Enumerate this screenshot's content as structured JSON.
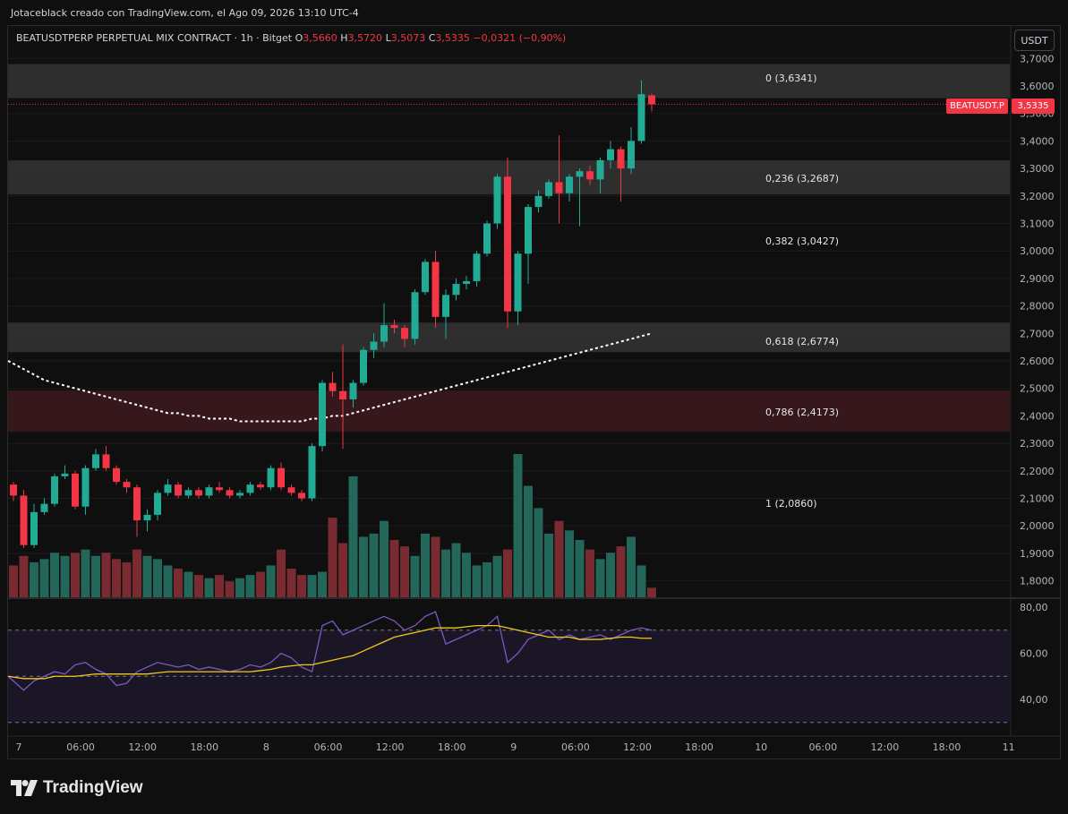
{
  "header": {
    "watermark": "Jotaceblack creado con TradingView.com, el Ago 09, 2026 13:10 UTC-4"
  },
  "legend": {
    "symbol": "BEATUSDTPERP PERPETUAL MIX CONTRACT · 1h · Bitget",
    "o_label": "O",
    "o": "3,5660",
    "h_label": "H",
    "h": "3,5720",
    "l_label": "L",
    "l": "3,5073",
    "c_label": "C",
    "c": "3,5335",
    "change": "−0,0321 (−0,90%)"
  },
  "price_scale": {
    "unit": "USDT",
    "ticks": [
      "3,7000",
      "3,6000",
      "3,5000",
      "3,4000",
      "3,3000",
      "3,2000",
      "3,1000",
      "3,0000",
      "2,9000",
      "2,8000",
      "2,7000",
      "2,6000",
      "2,5000",
      "2,4000",
      "2,3000",
      "2,2000",
      "2,1000",
      "2,0000",
      "1,9000",
      "1,8000"
    ],
    "last_tag": "BEATUSDT.P",
    "last_price": "3,5335"
  },
  "rsi_scale": {
    "ticks": [
      "80,00",
      "60,00",
      "40,00"
    ]
  },
  "time_axis": [
    "7",
    "06:00",
    "12:00",
    "18:00",
    "8",
    "06:00",
    "12:00",
    "18:00",
    "9",
    "06:00",
    "12:00",
    "18:00",
    "10",
    "06:00",
    "12:00",
    "18:00",
    "11"
  ],
  "footer": {
    "brand": "TradingView"
  },
  "colors": {
    "up": "#22ab94",
    "down": "#f23645",
    "rsi_line": "#7e57c2",
    "rsi_ma": "#f0c81e",
    "fib_band": "#3a3a3a",
    "fib_786_band": "#3b1a1e"
  },
  "chart_data": {
    "type": "candlestick",
    "price_range": [
      1.76,
      3.72
    ],
    "fib_levels": [
      {
        "ratio": "0",
        "value": 3.6341,
        "label": "0 (3,6341)"
      },
      {
        "ratio": "0.236",
        "value": 3.2687,
        "label": "0,236 (3,2687)"
      },
      {
        "ratio": "0.382",
        "value": 3.0427,
        "label": "0,382 (3,0427)"
      },
      {
        "ratio": "0.618",
        "value": 2.6774,
        "label": "0,618 (2,6774)"
      },
      {
        "ratio": "0.786",
        "value": 2.4173,
        "label": "0,786 (2,4173)"
      },
      {
        "ratio": "1",
        "value": 2.086,
        "label": "1 (2,0860)"
      }
    ],
    "candles": [
      {
        "o": 2.15,
        "h": 2.16,
        "l": 2.09,
        "c": 2.11
      },
      {
        "o": 2.11,
        "h": 2.13,
        "l": 1.92,
        "c": 1.93
      },
      {
        "o": 1.93,
        "h": 2.08,
        "l": 1.92,
        "c": 2.05
      },
      {
        "o": 2.05,
        "h": 2.1,
        "l": 2.04,
        "c": 2.08
      },
      {
        "o": 2.08,
        "h": 2.19,
        "l": 2.07,
        "c": 2.18
      },
      {
        "o": 2.18,
        "h": 2.22,
        "l": 2.17,
        "c": 2.19
      },
      {
        "o": 2.19,
        "h": 2.2,
        "l": 2.06,
        "c": 2.07
      },
      {
        "o": 2.07,
        "h": 2.22,
        "l": 2.04,
        "c": 2.21
      },
      {
        "o": 2.21,
        "h": 2.28,
        "l": 2.2,
        "c": 2.26
      },
      {
        "o": 2.26,
        "h": 2.29,
        "l": 2.2,
        "c": 2.21
      },
      {
        "o": 2.21,
        "h": 2.22,
        "l": 2.15,
        "c": 2.16
      },
      {
        "o": 2.16,
        "h": 2.17,
        "l": 2.12,
        "c": 2.14
      },
      {
        "o": 2.14,
        "h": 2.15,
        "l": 1.96,
        "c": 2.02
      },
      {
        "o": 2.02,
        "h": 2.06,
        "l": 1.98,
        "c": 2.04
      },
      {
        "o": 2.04,
        "h": 2.13,
        "l": 2.02,
        "c": 2.12
      },
      {
        "o": 2.12,
        "h": 2.17,
        "l": 2.11,
        "c": 2.15
      },
      {
        "o": 2.15,
        "h": 2.16,
        "l": 2.1,
        "c": 2.11
      },
      {
        "o": 2.11,
        "h": 2.14,
        "l": 2.1,
        "c": 2.13
      },
      {
        "o": 2.13,
        "h": 2.14,
        "l": 2.1,
        "c": 2.11
      },
      {
        "o": 2.11,
        "h": 2.15,
        "l": 2.1,
        "c": 2.14
      },
      {
        "o": 2.14,
        "h": 2.16,
        "l": 2.12,
        "c": 2.13
      },
      {
        "o": 2.13,
        "h": 2.14,
        "l": 2.1,
        "c": 2.11
      },
      {
        "o": 2.11,
        "h": 2.13,
        "l": 2.1,
        "c": 2.12
      },
      {
        "o": 2.12,
        "h": 2.16,
        "l": 2.11,
        "c": 2.15
      },
      {
        "o": 2.15,
        "h": 2.16,
        "l": 2.13,
        "c": 2.14
      },
      {
        "o": 2.14,
        "h": 2.22,
        "l": 2.13,
        "c": 2.21
      },
      {
        "o": 2.21,
        "h": 2.23,
        "l": 2.13,
        "c": 2.14
      },
      {
        "o": 2.14,
        "h": 2.15,
        "l": 2.11,
        "c": 2.12
      },
      {
        "o": 2.12,
        "h": 2.13,
        "l": 2.09,
        "c": 2.1
      },
      {
        "o": 2.1,
        "h": 2.3,
        "l": 2.09,
        "c": 2.29
      },
      {
        "o": 2.29,
        "h": 2.53,
        "l": 2.27,
        "c": 2.52
      },
      {
        "o": 2.52,
        "h": 2.56,
        "l": 2.47,
        "c": 2.49
      },
      {
        "o": 2.49,
        "h": 2.66,
        "l": 2.28,
        "c": 2.46
      },
      {
        "o": 2.46,
        "h": 2.53,
        "l": 2.43,
        "c": 2.52
      },
      {
        "o": 2.52,
        "h": 2.65,
        "l": 2.51,
        "c": 2.64
      },
      {
        "o": 2.64,
        "h": 2.7,
        "l": 2.61,
        "c": 2.67
      },
      {
        "o": 2.67,
        "h": 2.81,
        "l": 2.65,
        "c": 2.73
      },
      {
        "o": 2.73,
        "h": 2.75,
        "l": 2.7,
        "c": 2.72
      },
      {
        "o": 2.72,
        "h": 2.73,
        "l": 2.65,
        "c": 2.68
      },
      {
        "o": 2.68,
        "h": 2.86,
        "l": 2.66,
        "c": 2.85
      },
      {
        "o": 2.85,
        "h": 2.97,
        "l": 2.84,
        "c": 2.96
      },
      {
        "o": 2.96,
        "h": 3.0,
        "l": 2.72,
        "c": 2.76
      },
      {
        "o": 2.76,
        "h": 2.86,
        "l": 2.68,
        "c": 2.84
      },
      {
        "o": 2.84,
        "h": 2.9,
        "l": 2.82,
        "c": 2.88
      },
      {
        "o": 2.88,
        "h": 2.91,
        "l": 2.86,
        "c": 2.89
      },
      {
        "o": 2.89,
        "h": 3.0,
        "l": 2.87,
        "c": 2.99
      },
      {
        "o": 2.99,
        "h": 3.11,
        "l": 2.98,
        "c": 3.1
      },
      {
        "o": 3.1,
        "h": 3.28,
        "l": 3.08,
        "c": 3.27
      },
      {
        "o": 3.27,
        "h": 3.34,
        "l": 2.72,
        "c": 2.78
      },
      {
        "o": 2.78,
        "h": 3.0,
        "l": 2.73,
        "c": 2.99
      },
      {
        "o": 2.99,
        "h": 3.17,
        "l": 2.88,
        "c": 3.16
      },
      {
        "o": 3.16,
        "h": 3.22,
        "l": 3.14,
        "c": 3.2
      },
      {
        "o": 3.2,
        "h": 3.26,
        "l": 3.19,
        "c": 3.25
      },
      {
        "o": 3.25,
        "h": 3.42,
        "l": 3.1,
        "c": 3.21
      },
      {
        "o": 3.21,
        "h": 3.28,
        "l": 3.18,
        "c": 3.27
      },
      {
        "o": 3.27,
        "h": 3.3,
        "l": 3.09,
        "c": 3.29
      },
      {
        "o": 3.29,
        "h": 3.31,
        "l": 3.24,
        "c": 3.26
      },
      {
        "o": 3.26,
        "h": 3.34,
        "l": 3.21,
        "c": 3.33
      },
      {
        "o": 3.33,
        "h": 3.4,
        "l": 3.3,
        "c": 3.37
      },
      {
        "o": 3.37,
        "h": 3.38,
        "l": 3.18,
        "c": 3.3
      },
      {
        "o": 3.3,
        "h": 3.45,
        "l": 3.28,
        "c": 3.4
      },
      {
        "o": 3.4,
        "h": 3.62,
        "l": 3.39,
        "c": 3.57
      },
      {
        "o": 3.566,
        "h": 3.572,
        "l": 3.5073,
        "c": 3.5335
      }
    ],
    "volumes": [
      20,
      26,
      22,
      24,
      28,
      26,
      28,
      30,
      26,
      28,
      24,
      22,
      30,
      26,
      24,
      20,
      18,
      16,
      14,
      12,
      14,
      10,
      12,
      14,
      16,
      20,
      30,
      18,
      14,
      14,
      16,
      50,
      34,
      76,
      38,
      40,
      48,
      36,
      32,
      26,
      40,
      38,
      30,
      34,
      28,
      20,
      22,
      26,
      30,
      90,
      70,
      56,
      40,
      48,
      42,
      36,
      30,
      24,
      28,
      32,
      38,
      20,
      6
    ],
    "rsi": {
      "range": [
        30,
        85
      ],
      "values": [
        50,
        44,
        48,
        50,
        52,
        51,
        55,
        56,
        53,
        51,
        46,
        47,
        52,
        54,
        56,
        55,
        54,
        55,
        53,
        54,
        53,
        52,
        53,
        55,
        54,
        56,
        60,
        58,
        54,
        52,
        72,
        74,
        68,
        70,
        72,
        74,
        76,
        74,
        70,
        72,
        76,
        78,
        64,
        66,
        68,
        70,
        72,
        76,
        56,
        60,
        66,
        68,
        70,
        66,
        68,
        66,
        67,
        68,
        66,
        68,
        70,
        71,
        70
      ],
      "ma": [
        50,
        49,
        49,
        49,
        50,
        50,
        50,
        50.5,
        51,
        51,
        51,
        51,
        51,
        51,
        51.5,
        52,
        52,
        52,
        52,
        52,
        52,
        52,
        52,
        52,
        52.5,
        53,
        54,
        54.5,
        55,
        55,
        56,
        57,
        58,
        59,
        61,
        63,
        65,
        67,
        68,
        69,
        70,
        71,
        71,
        71,
        71.5,
        72,
        72,
        72,
        71,
        70,
        69,
        68,
        67,
        67,
        67,
        66,
        66,
        66,
        66.5,
        67,
        67,
        66.5,
        66.5
      ]
    },
    "ma_overlay": [
      2.6,
      2.57,
      2.55,
      2.53,
      2.52,
      2.51,
      2.5,
      2.49,
      2.48,
      2.47,
      2.46,
      2.45,
      2.44,
      2.43,
      2.42,
      2.41,
      2.41,
      2.4,
      2.4,
      2.39,
      2.39,
      2.39,
      2.38,
      2.38,
      2.38,
      2.38,
      2.38,
      2.38,
      2.38,
      2.39,
      2.39,
      2.4,
      2.4,
      2.41,
      2.42,
      2.43,
      2.44,
      2.45,
      2.46,
      2.47,
      2.48,
      2.49,
      2.5,
      2.51,
      2.52,
      2.53,
      2.54,
      2.55,
      2.56,
      2.57,
      2.58,
      2.59,
      2.6,
      2.61,
      2.62,
      2.63,
      2.64,
      2.65,
      2.66,
      2.67,
      2.68,
      2.69,
      2.7
    ]
  }
}
